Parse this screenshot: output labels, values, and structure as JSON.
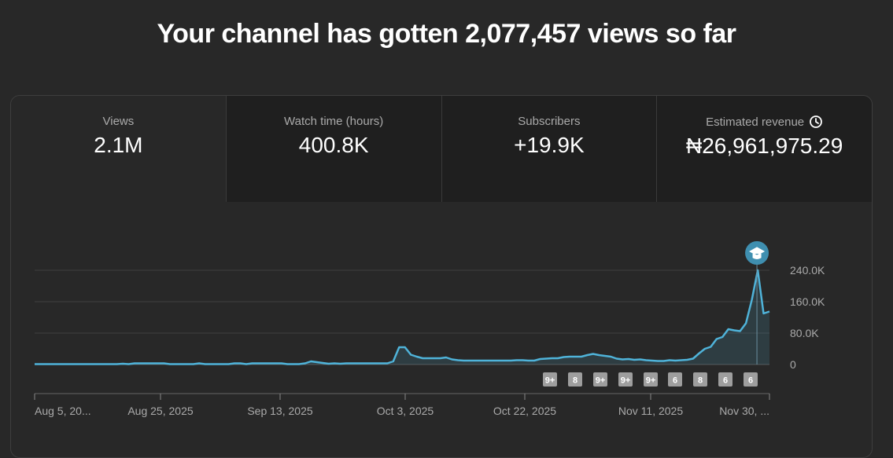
{
  "headline": "Your channel has gotten 2,077,457 views so far",
  "tabs": [
    {
      "label": "Views",
      "value": "2.1M",
      "active": true
    },
    {
      "label": "Watch time (hours)",
      "value": "400.8K",
      "active": false
    },
    {
      "label": "Subscribers",
      "value": "+19.9K",
      "active": false
    },
    {
      "label": "Estimated revenue",
      "value": "₦26,961,975.29",
      "active": false,
      "icon": "clock-icon"
    }
  ],
  "chart_data": {
    "type": "area",
    "title": "",
    "xlabel": "",
    "ylabel": "",
    "series": [
      {
        "name": "Views",
        "color": "#4fb3d9",
        "values": [
          1000,
          1000,
          1000,
          1000,
          1000,
          1000,
          1000,
          1000,
          1000,
          1000,
          1000,
          1000,
          1000,
          1000,
          1000,
          2000,
          1000,
          3000,
          3000,
          3000,
          3000,
          3000,
          3000,
          1000,
          1000,
          1000,
          1000,
          1000,
          3000,
          1000,
          1000,
          1000,
          1000,
          1000,
          3000,
          3000,
          1000,
          3000,
          3000,
          3000,
          3000,
          3000,
          3000,
          1000,
          1000,
          1000,
          3000,
          8000,
          6000,
          4000,
          2000,
          3000,
          2000,
          3000,
          3000,
          3000,
          3000,
          3000,
          3000,
          3000,
          3000,
          8000,
          44000,
          44000,
          25000,
          20000,
          16000,
          16000,
          16000,
          16000,
          18000,
          13000,
          11000,
          10000,
          10000,
          10000,
          10000,
          10000,
          10000,
          10000,
          10000,
          10000,
          11000,
          11000,
          10000,
          10000,
          14000,
          15000,
          16000,
          16000,
          19000,
          20000,
          20000,
          20000,
          24000,
          27000,
          24000,
          22000,
          20000,
          15000,
          13000,
          14000,
          12000,
          13000,
          11000,
          10000,
          9000,
          9000,
          11000,
          10000,
          11000,
          12000,
          15000,
          28000,
          40000,
          45000,
          65000,
          70000,
          90000,
          87000,
          85000,
          105000,
          165000,
          240000,
          130000,
          135000
        ]
      }
    ],
    "x_ticks": [
      "Aug 5, 20...",
      "Aug 25, 2025",
      "Sep 13, 2025",
      "Oct 3, 2025",
      "Oct 22, 2025",
      "Nov 11, 2025",
      "Nov 30, ..."
    ],
    "y_ticks": [
      "240.0K",
      "160.0K",
      "80.0K",
      "0"
    ],
    "ylim": [
      0,
      240000
    ],
    "grid": true,
    "annotation_icon": "graduation-cap-icon",
    "badges": [
      "9+",
      "8",
      "9+",
      "9+",
      "9+",
      "6",
      "8",
      "6",
      "6"
    ]
  }
}
